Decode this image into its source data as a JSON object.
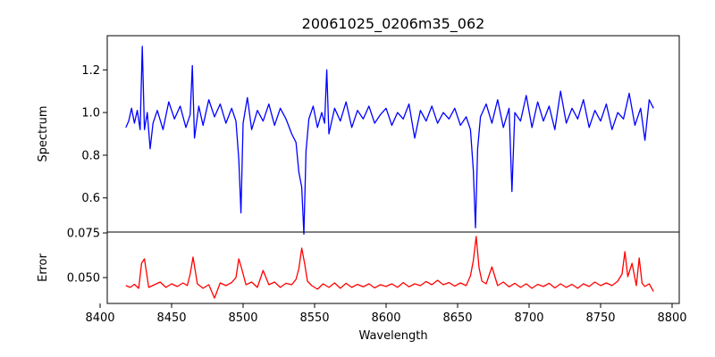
{
  "chart_data": [
    {
      "type": "line",
      "title": "20061025_0206m35_062",
      "xlabel": "",
      "ylabel": "Spectrum",
      "xlim": [
        8405,
        8805
      ],
      "ylim": [
        0.44,
        1.36
      ],
      "yticks": [
        0.6,
        0.8,
        1.0,
        1.2
      ],
      "ytick_labels": [
        "0.6",
        "0.8",
        "1.0",
        "1.2"
      ],
      "grid": false,
      "series": [
        {
          "color": "#0000ff",
          "x": [
            8418,
            8420,
            8422,
            8424,
            8426,
            8428,
            8429.5,
            8431,
            8433,
            8435,
            8437,
            8440,
            8444,
            8448,
            8452,
            8456,
            8460,
            8463,
            8464.5,
            8466,
            8469,
            8472,
            8476,
            8480,
            8484,
            8488,
            8492,
            8495,
            8497,
            8498.5,
            8500,
            8503,
            8506,
            8510,
            8514,
            8518,
            8522,
            8526,
            8530,
            8534,
            8537,
            8539,
            8541,
            8542.5,
            8544,
            8546,
            8549,
            8552,
            8555,
            8557,
            8558.5,
            8560,
            8564,
            8568,
            8572,
            8576,
            8580,
            8584,
            8588,
            8592,
            8596,
            8600,
            8604,
            8608,
            8612,
            8616,
            8620,
            8624,
            8628,
            8632,
            8636,
            8640,
            8644,
            8648,
            8652,
            8656,
            8659,
            8661,
            8662.5,
            8664,
            8666,
            8670,
            8674,
            8678,
            8682,
            8686,
            8688,
            8690,
            8694,
            8698,
            8702,
            8706,
            8710,
            8714,
            8718,
            8722,
            8726,
            8730,
            8734,
            8738,
            8742,
            8746,
            8750,
            8754,
            8758,
            8762,
            8766,
            8770,
            8774,
            8778,
            8781,
            8784,
            8787
          ],
          "y": [
            0.93,
            0.96,
            1.02,
            0.95,
            1.01,
            0.92,
            1.31,
            0.92,
            1.0,
            0.83,
            0.95,
            1.01,
            0.92,
            1.05,
            0.97,
            1.03,
            0.93,
            0.99,
            1.22,
            0.88,
            1.03,
            0.94,
            1.06,
            0.98,
            1.04,
            0.95,
            1.02,
            0.96,
            0.78,
            0.53,
            0.95,
            1.07,
            0.92,
            1.01,
            0.96,
            1.04,
            0.94,
            1.02,
            0.97,
            0.9,
            0.86,
            0.72,
            0.65,
            0.43,
            0.82,
            0.97,
            1.03,
            0.93,
            1.0,
            0.95,
            1.2,
            0.9,
            1.02,
            0.96,
            1.05,
            0.93,
            1.01,
            0.97,
            1.03,
            0.95,
            0.99,
            1.02,
            0.94,
            1.0,
            0.97,
            1.04,
            0.88,
            1.01,
            0.96,
            1.03,
            0.95,
            1.0,
            0.97,
            1.02,
            0.94,
            0.98,
            0.92,
            0.73,
            0.46,
            0.83,
            0.98,
            1.04,
            0.95,
            1.06,
            0.93,
            1.02,
            0.63,
            1.0,
            0.96,
            1.08,
            0.93,
            1.05,
            0.96,
            1.03,
            0.92,
            1.1,
            0.95,
            1.02,
            0.97,
            1.06,
            0.93,
            1.01,
            0.96,
            1.04,
            0.92,
            1.0,
            0.97,
            1.09,
            0.94,
            1.02,
            0.87,
            1.06,
            1.02
          ]
        }
      ]
    },
    {
      "type": "line",
      "title": "",
      "xlabel": "Wavelength",
      "ylabel": "Error",
      "xlim": [
        8405,
        8805
      ],
      "ylim": [
        0.0355,
        0.0755
      ],
      "yticks": [
        0.05,
        0.075
      ],
      "ytick_labels": [
        "0.050",
        "0.075"
      ],
      "xticks": [
        8400,
        8450,
        8500,
        8550,
        8600,
        8650,
        8700,
        8750,
        8800
      ],
      "xtick_labels": [
        "8400",
        "8450",
        "8500",
        "8550",
        "8600",
        "8650",
        "8700",
        "8750",
        "8800"
      ],
      "grid": false,
      "series": [
        {
          "color": "#ff0000",
          "x": [
            8418,
            8421,
            8424,
            8427,
            8429,
            8431,
            8434,
            8438,
            8442,
            8446,
            8450,
            8454,
            8458,
            8461,
            8463,
            8465,
            8468,
            8472,
            8476,
            8480,
            8484,
            8488,
            8492,
            8495,
            8497,
            8499,
            8502,
            8506,
            8510,
            8514,
            8518,
            8522,
            8526,
            8530,
            8534,
            8537,
            8539,
            8541,
            8543,
            8545,
            8548,
            8552,
            8556,
            8560,
            8564,
            8568,
            8572,
            8576,
            8580,
            8584,
            8588,
            8592,
            8596,
            8600,
            8604,
            8608,
            8612,
            8616,
            8620,
            8624,
            8628,
            8632,
            8636,
            8640,
            8644,
            8648,
            8652,
            8656,
            8659,
            8661,
            8663,
            8665,
            8667,
            8670,
            8674,
            8678,
            8682,
            8686,
            8690,
            8694,
            8698,
            8702,
            8706,
            8710,
            8714,
            8718,
            8722,
            8726,
            8730,
            8734,
            8738,
            8742,
            8746,
            8750,
            8754,
            8758,
            8762,
            8765,
            8767,
            8769,
            8772,
            8775,
            8777,
            8779,
            8781,
            8784,
            8787
          ],
          "y": [
            0.0455,
            0.0445,
            0.0462,
            0.044,
            0.058,
            0.0605,
            0.0445,
            0.046,
            0.0475,
            0.0445,
            0.0465,
            0.045,
            0.047,
            0.0455,
            0.052,
            0.0615,
            0.0465,
            0.044,
            0.046,
            0.0385,
            0.047,
            0.0455,
            0.0472,
            0.05,
            0.0605,
            0.055,
            0.046,
            0.0475,
            0.0445,
            0.054,
            0.046,
            0.0475,
            0.0445,
            0.0468,
            0.046,
            0.049,
            0.055,
            0.0665,
            0.058,
            0.048,
            0.0455,
            0.0435,
            0.0465,
            0.0445,
            0.047,
            0.044,
            0.0468,
            0.0445,
            0.0462,
            0.0448,
            0.0465,
            0.0442,
            0.046,
            0.045,
            0.0465,
            0.0445,
            0.0472,
            0.0448,
            0.0465,
            0.0455,
            0.0478,
            0.046,
            0.0485,
            0.046,
            0.0472,
            0.0452,
            0.047,
            0.0455,
            0.051,
            0.0595,
            0.073,
            0.0555,
            0.048,
            0.0465,
            0.056,
            0.0455,
            0.0475,
            0.0448,
            0.0468,
            0.0445,
            0.0465,
            0.044,
            0.0462,
            0.045,
            0.0468,
            0.0442,
            0.0465,
            0.0445,
            0.0462,
            0.044,
            0.0465,
            0.045,
            0.0475,
            0.0455,
            0.047,
            0.0455,
            0.048,
            0.052,
            0.0645,
            0.0505,
            0.058,
            0.0455,
            0.061,
            0.0468,
            0.045,
            0.0465,
            0.0422
          ]
        }
      ]
    }
  ]
}
